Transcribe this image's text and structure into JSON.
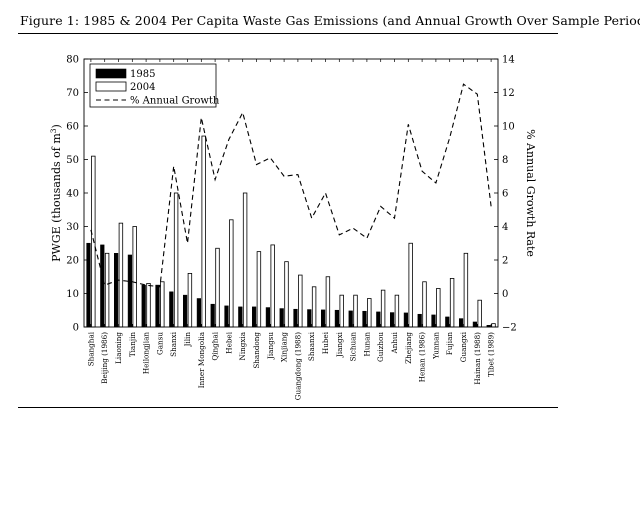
{
  "chart_data": {
    "type": "bar",
    "title": "Figure 1: 1985 & 2004 Per Capita Waste Gas Emissions (and Annual Growth Over Sample Period)",
    "ylabel": "PWGE (thousands of m",
    "ylabel_sup": "3",
    "ylabel_tail": ")",
    "y2label": "% Annual Growth Rate",
    "ylim": [
      0,
      80
    ],
    "y2lim": [
      -2,
      14
    ],
    "yticks": [
      "0",
      "10",
      "20",
      "30",
      "40",
      "50",
      "60",
      "70",
      "80"
    ],
    "y2ticks": [
      "−2",
      "0",
      "2",
      "4",
      "6",
      "8",
      "10",
      "12",
      "14"
    ],
    "categories": [
      "Shanghai",
      "Beijing (1986)",
      "Liaoning",
      "Tianjin",
      "Heilongjian",
      "Gansu",
      "Shanxi",
      "Jilin",
      "Inner Mongolia",
      "Qinghai",
      "Hebei",
      "Ningxia",
      "Shandong",
      "Jiangsu",
      "Xinjiang",
      "Guangdong (1988)",
      "Shaanxi",
      "Hubei",
      "Jiangxi",
      "Sichuan",
      "Hunan",
      "Guizhou",
      "Anhui",
      "Zhejiang",
      "Henan (1986)",
      "Yunnan",
      "Fujian",
      "Guangxi",
      "Hainan (1988)",
      "Tibet (1989)"
    ],
    "series": [
      {
        "name": "1985",
        "fill": "#000000",
        "values": [
          25,
          24.5,
          22,
          21.5,
          12.5,
          12.5,
          10.5,
          9.5,
          8.5,
          6.8,
          6.3,
          6,
          6,
          5.8,
          5.5,
          5.3,
          5.2,
          5.1,
          5,
          4.8,
          4.7,
          4.5,
          4.3,
          4.2,
          3.8,
          3.6,
          3,
          2.5,
          1.5,
          0.5
        ]
      },
      {
        "name": "2004",
        "fill": "#ffffff",
        "values": [
          51,
          22,
          31,
          30,
          13,
          13.5,
          40,
          16,
          57,
          23.5,
          32,
          40,
          22.5,
          24.5,
          19.5,
          15.5,
          12,
          15,
          9.5,
          9.5,
          8.5,
          11,
          9.5,
          25,
          13.5,
          11.5,
          14.5,
          22,
          8,
          1
        ]
      },
      {
        "name": "% Annual Growth",
        "axis": "right",
        "style": "dashed",
        "values": [
          3.8,
          0.5,
          0.8,
          0.7,
          0.5,
          0.4,
          7.6,
          3,
          10.5,
          6.8,
          9.2,
          10.8,
          7.7,
          8.1,
          7,
          7.1,
          4.5,
          6,
          3.5,
          3.9,
          3.3,
          5.2,
          4.5,
          10.1,
          7.3,
          6.6,
          9.3,
          12.5,
          11.9,
          5.2
        ]
      }
    ],
    "legend": "top-left"
  }
}
